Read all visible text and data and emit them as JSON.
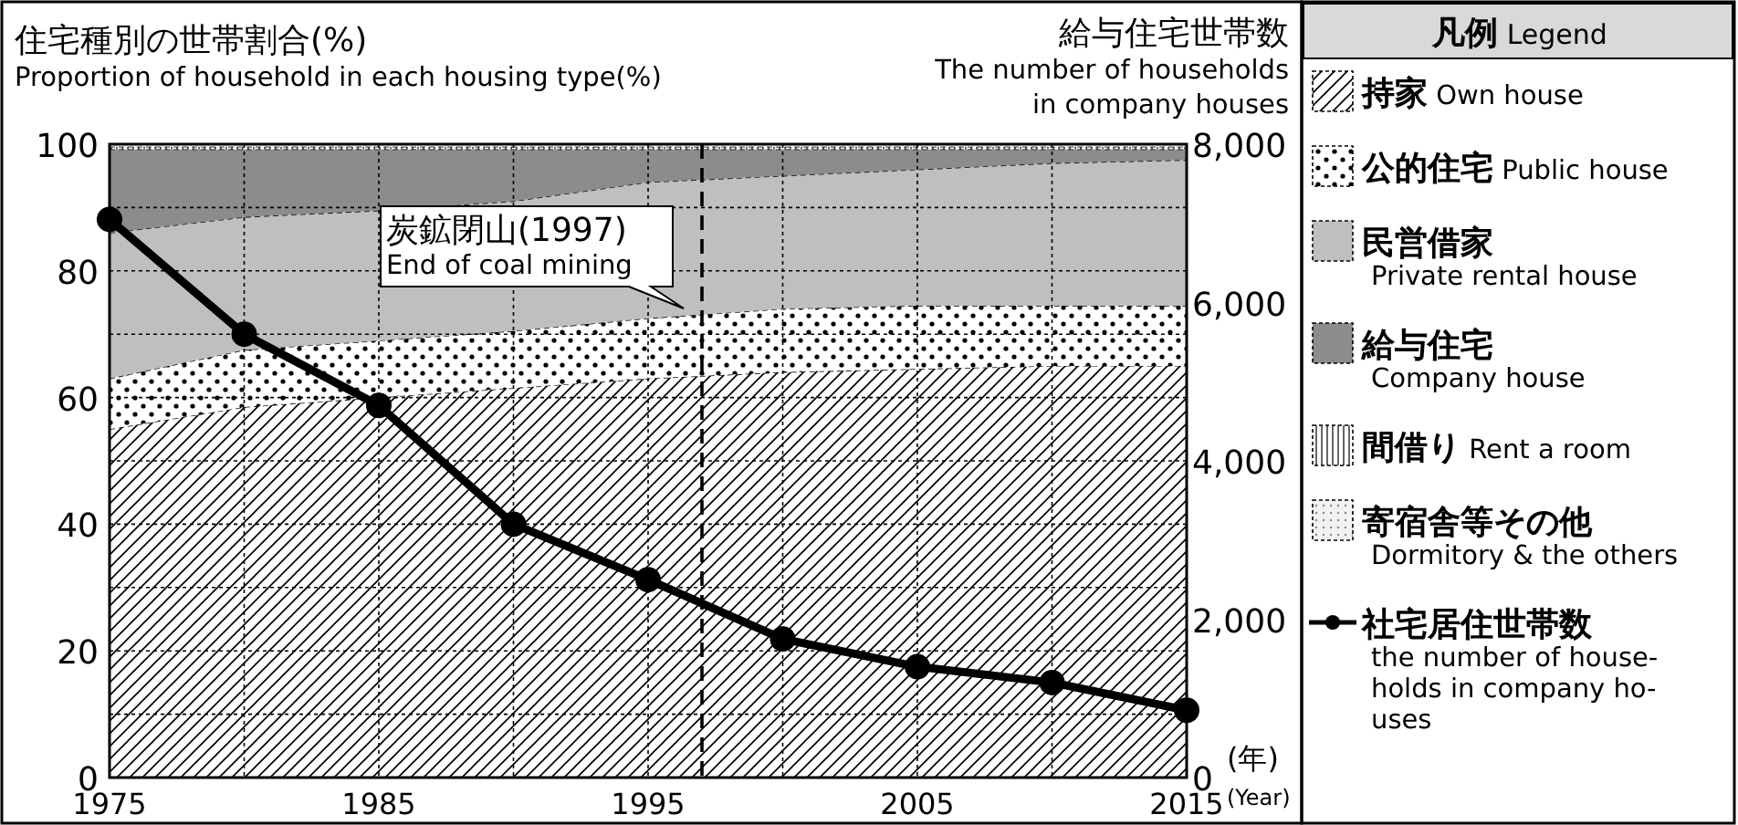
{
  "chart_data": {
    "type": "area",
    "stacked": true,
    "ylabel": "住宅種別の世帯割合(%)\nProportion of household in each housing type(%)",
    "y2label": "給与住宅世帯数\nThe number of households\nin company houses",
    "xlabel": "(年)\n(Year)",
    "legend_title": "凡例 Legend",
    "x": [
      1975,
      1980,
      1985,
      1990,
      1995,
      2000,
      2005,
      2010,
      2015
    ],
    "series": [
      {
        "name": "持家 Own house",
        "color": "#ffffff",
        "values": [
          55,
          58.5,
          60,
          61.5,
          63,
          64,
          64.5,
          65,
          65
        ]
      },
      {
        "name": "公的住宅 Public house",
        "color": "#ffffff",
        "values": [
          8,
          9,
          9,
          9,
          9.5,
          10,
          10,
          9.5,
          9.5
        ]
      },
      {
        "name": "民営借家\nPrivate rental house",
        "color": "#bfbfbf",
        "values": [
          23,
          21,
          20.5,
          20.5,
          21.5,
          21,
          21.5,
          22.5,
          23
        ]
      },
      {
        "name": "給与住宅\nCompany house",
        "color": "#8c8c8c",
        "values": [
          13.2,
          10.7,
          9.7,
          8.2,
          5.2,
          4.2,
          3.2,
          2.2,
          1.7
        ]
      },
      {
        "name": "間借り Rent a room",
        "color": "#ffffff",
        "values": [
          0.4,
          0.4,
          0.4,
          0.4,
          0.4,
          0.4,
          0.4,
          0.4,
          0.4
        ]
      },
      {
        "name": "寄宿舎等その他\nDormitory & the others",
        "color": "#f2f2f2",
        "values": [
          0.4,
          0.4,
          0.4,
          0.4,
          0.4,
          0.4,
          0.4,
          0.4,
          0.4
        ]
      },
      {
        "name": "社宅居住世帯数\nthe number of house-\nholds in company ho-\nuses",
        "type": "line",
        "axis": "y2",
        "marker": "circle",
        "line_style": "solid",
        "color": "#000000",
        "values": [
          7050,
          5600,
          4700,
          3200,
          2500,
          1750,
          1400,
          1200,
          850
        ]
      }
    ],
    "xlim": [
      1975,
      2015
    ],
    "xticks": [
      1975,
      {
        "value": 1980,
        "label": null
      },
      1985,
      {
        "value": 1990,
        "label": null
      },
      1995,
      {
        "value": 2000,
        "label": null
      },
      2005,
      {
        "value": 2010,
        "label": null
      },
      2015
    ],
    "ylim": [
      0,
      100
    ],
    "yticks": [
      0,
      {
        "value": 10,
        "label": null
      },
      20,
      {
        "value": 30,
        "label": null
      },
      40,
      {
        "value": 50,
        "label": null
      },
      60,
      {
        "value": 70,
        "label": null
      },
      80,
      {
        "value": 90,
        "label": null
      },
      100
    ],
    "y2lim": [
      0,
      8000
    ],
    "y2ticks": [
      0,
      {
        "value": 2000,
        "label": "2,000"
      },
      {
        "value": 4000,
        "label": "4,000"
      },
      {
        "value": 6000,
        "label": "6,000"
      },
      {
        "value": 8000,
        "label": "8,000"
      }
    ],
    "ref_lines": [
      {
        "axis": "x",
        "value": 1997,
        "label": "炭鉱閉山(1997)\nEnd of coal mining",
        "line_style": "dashed"
      }
    ],
    "grid": true,
    "legend": "right"
  }
}
